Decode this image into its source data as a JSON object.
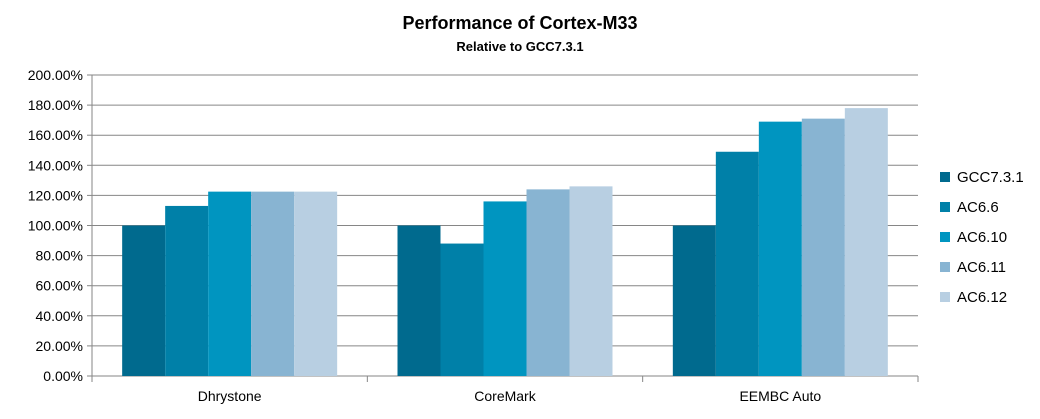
{
  "chart_data": {
    "type": "bar",
    "title": "Performance of Cortex-M33",
    "subtitle": "Relative to GCC7.3.1",
    "categories": [
      "Dhrystone",
      "CoreMark",
      "EEMBC Auto"
    ],
    "series": [
      {
        "name": "GCC7.3.1",
        "color": "#006a8e",
        "values": [
          100,
          100,
          100
        ]
      },
      {
        "name": "AC6.6",
        "color": "#0080a8",
        "values": [
          113,
          88,
          149
        ]
      },
      {
        "name": "AC6.10",
        "color": "#0095c0",
        "values": [
          122.5,
          116,
          169
        ]
      },
      {
        "name": "AC6.11",
        "color": "#88b4d2",
        "values": [
          122.5,
          124,
          171
        ]
      },
      {
        "name": "AC6.12",
        "color": "#b8cfe2",
        "values": [
          122.5,
          126,
          178
        ]
      }
    ],
    "ylim": [
      0,
      200
    ],
    "yticks": [
      "0.00%",
      "20.00%",
      "40.00%",
      "60.00%",
      "80.00%",
      "100.00%",
      "120.00%",
      "140.00%",
      "160.00%",
      "180.00%",
      "200.00%"
    ],
    "xlabel": "",
    "ylabel": "",
    "grid": true,
    "legend_position": "right"
  }
}
